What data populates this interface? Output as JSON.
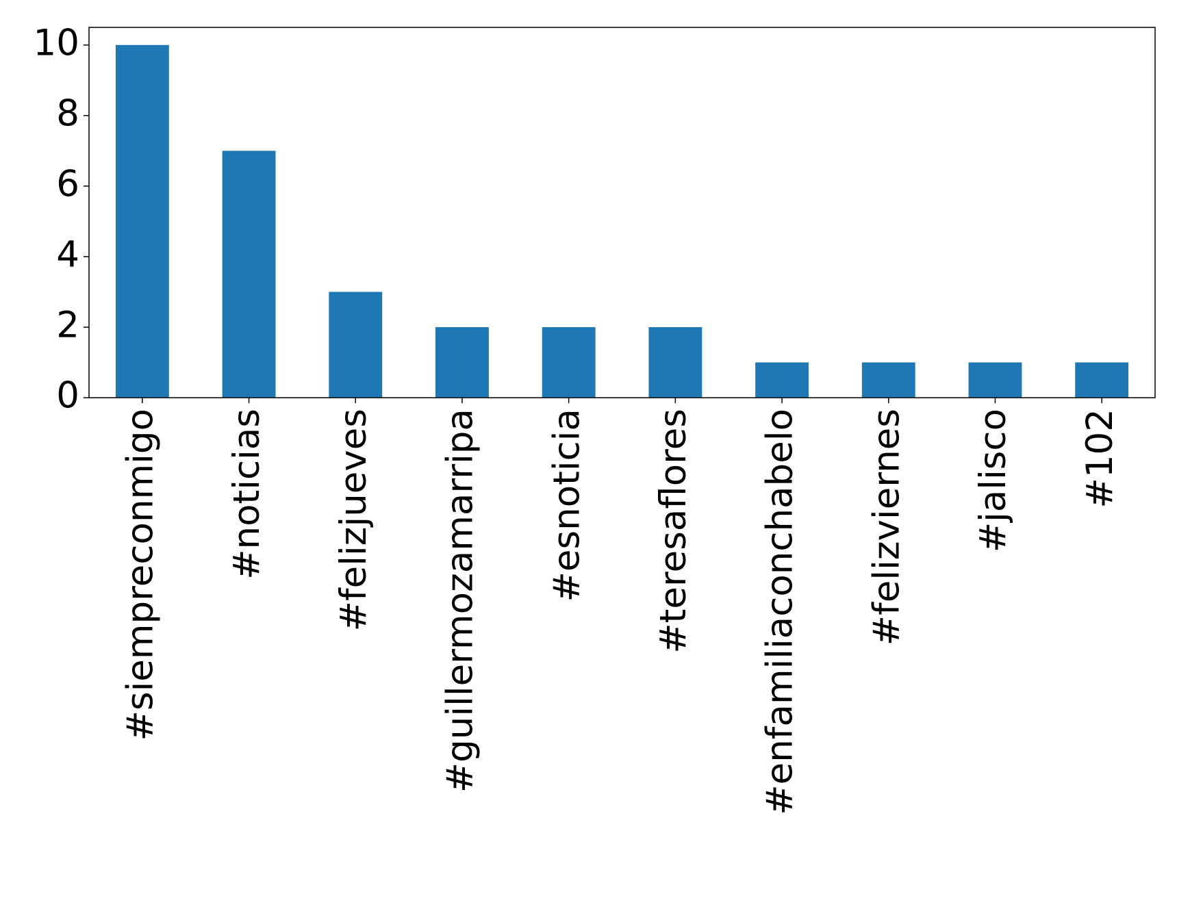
{
  "chart_data": {
    "type": "bar",
    "categories": [
      "#siempreconmigo",
      "#noticias",
      "#felizjueves",
      "#guillermozamarripa",
      "#esnoticia",
      "#teresaflores",
      "#enfamiliaconchabelo",
      "#felizviernes",
      "#jalisco",
      "#102"
    ],
    "values": [
      10,
      7,
      3,
      2,
      2,
      2,
      1,
      1,
      1,
      1
    ],
    "color": "#1f77b4",
    "ylim": [
      0,
      10.5
    ],
    "yticks": [
      0,
      2,
      4,
      6,
      8,
      10
    ],
    "grid": false
  }
}
